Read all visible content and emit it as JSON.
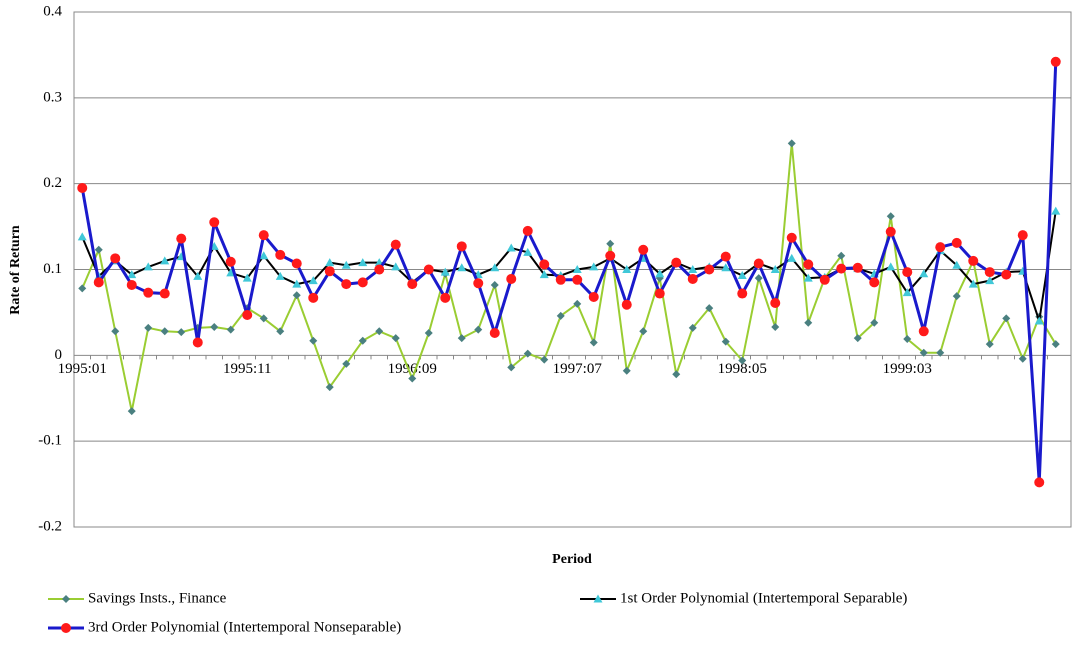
{
  "chart_data": {
    "type": "line",
    "x_label": "Period",
    "y_label": "Rate of Return",
    "categories": [
      "1995:01",
      null,
      null,
      null,
      null,
      null,
      null,
      null,
      null,
      null,
      "1995:11",
      null,
      null,
      null,
      null,
      null,
      null,
      null,
      null,
      null,
      "1996:09",
      null,
      null,
      null,
      null,
      null,
      null,
      null,
      null,
      null,
      "1997:07",
      null,
      null,
      null,
      null,
      null,
      null,
      null,
      null,
      null,
      "1998:05",
      null,
      null,
      null,
      null,
      null,
      null,
      null,
      null,
      null,
      "1999:03",
      null,
      null,
      null,
      null,
      null,
      null,
      null,
      null,
      null
    ],
    "ylim": [
      -0.2,
      0.4
    ],
    "yticks": [
      -0.2,
      -0.1,
      0,
      0.1,
      0.2,
      0.3,
      0.4
    ],
    "grid": true,
    "series": [
      {
        "name": "Savings Insts., Finance",
        "color": "#9acd32",
        "marker": "diamond",
        "marker_color": "#4a8080",
        "values": [
          0.078,
          0.123,
          0.028,
          -0.065,
          0.032,
          0.028,
          0.027,
          0.032,
          0.033,
          0.03,
          0.055,
          0.043,
          0.028,
          0.07,
          0.017,
          -0.037,
          -0.01,
          0.017,
          0.028,
          0.02,
          -0.027,
          0.026,
          0.095,
          0.02,
          0.03,
          0.082,
          -0.014,
          0.002,
          -0.005,
          0.046,
          0.06,
          0.015,
          0.13,
          -0.018,
          0.028,
          0.09,
          -0.022,
          0.032,
          0.055,
          0.016,
          -0.006,
          0.09,
          0.033,
          0.247,
          0.038,
          0.09,
          0.116,
          0.02,
          0.038,
          0.162,
          0.019,
          0.003,
          0.003,
          0.069,
          0.11,
          0.013,
          0.043,
          -0.004,
          0.045,
          0.013
        ]
      },
      {
        "name": "1st Order Polynomial (Intertemporal Separable)",
        "color": "#000000",
        "marker": "triangle",
        "marker_color": "#40c8d8",
        "values": [
          0.138,
          0.092,
          0.11,
          0.094,
          0.103,
          0.11,
          0.115,
          0.092,
          0.127,
          0.096,
          0.09,
          0.116,
          0.092,
          0.083,
          0.087,
          0.108,
          0.105,
          0.108,
          0.108,
          0.103,
          0.085,
          0.1,
          0.097,
          0.102,
          0.094,
          0.102,
          0.125,
          0.12,
          0.094,
          0.093,
          0.1,
          0.103,
          0.113,
          0.1,
          0.113,
          0.095,
          0.108,
          0.1,
          0.103,
          0.102,
          0.093,
          0.107,
          0.1,
          0.113,
          0.09,
          0.091,
          0.101,
          0.101,
          0.095,
          0.103,
          0.073,
          0.095,
          0.122,
          0.105,
          0.083,
          0.087,
          0.097,
          0.098,
          0.04,
          0.168
        ]
      },
      {
        "name": "3rd Order Polynomial (Intertemporal Nonseparable)",
        "color": "#1a1acc",
        "marker": "circle",
        "marker_color": "#ff1a1a",
        "values": [
          0.195,
          0.085,
          0.113,
          0.082,
          0.073,
          0.072,
          0.136,
          0.015,
          0.155,
          0.109,
          0.047,
          0.14,
          0.117,
          0.107,
          0.067,
          0.098,
          0.083,
          0.085,
          0.1,
          0.129,
          0.083,
          0.1,
          0.067,
          0.127,
          0.084,
          0.026,
          0.089,
          0.145,
          0.106,
          0.088,
          0.088,
          0.068,
          0.116,
          0.059,
          0.123,
          0.072,
          0.108,
          0.089,
          0.1,
          0.115,
          0.072,
          0.107,
          0.061,
          0.137,
          0.106,
          0.088,
          0.101,
          0.102,
          0.085,
          0.144,
          0.097,
          0.028,
          0.126,
          0.131,
          0.11,
          0.097,
          0.094,
          0.14,
          -0.148,
          0.342
        ]
      }
    ]
  }
}
